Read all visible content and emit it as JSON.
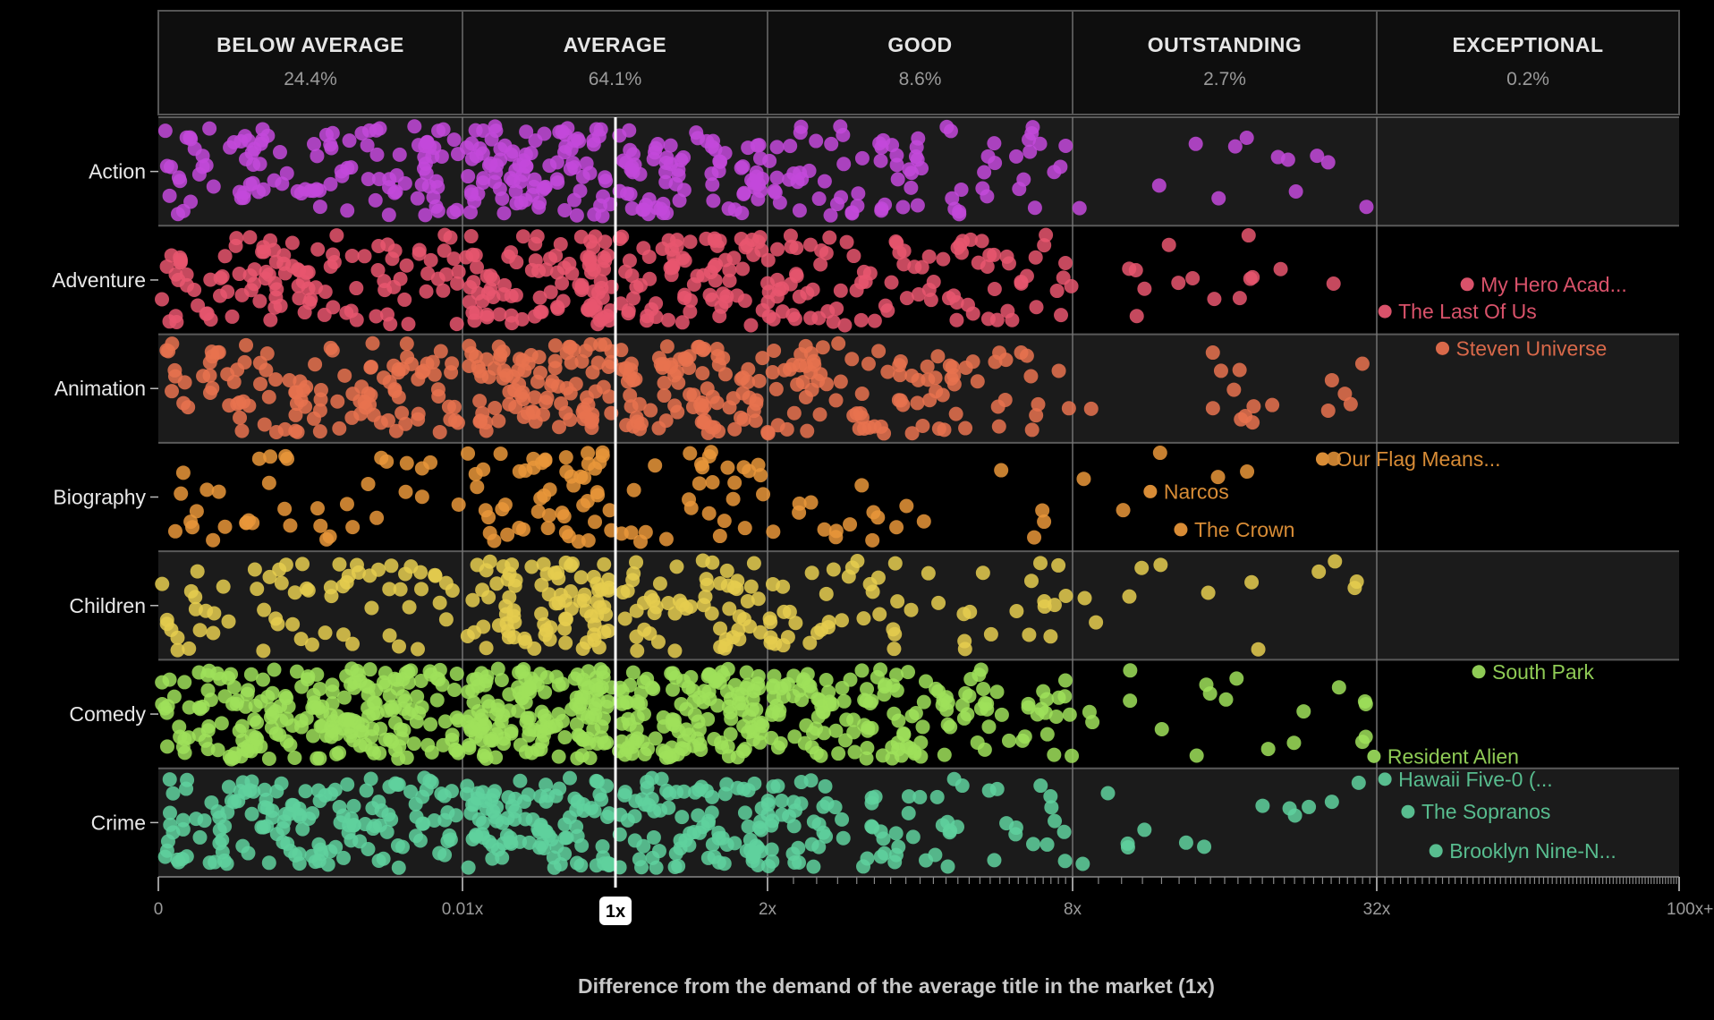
{
  "chart_data": {
    "type": "scatter",
    "subtype": "jitter-strip",
    "xlabel": "Difference from the demand of the average title in the market (1x)",
    "x_scale": "piecewise-log",
    "x_ticks": [
      {
        "value": 0,
        "label": "0"
      },
      {
        "value": 0.01,
        "label": "0.01x"
      },
      {
        "value": 1,
        "label": "1x",
        "highlighted": true
      },
      {
        "value": 2,
        "label": "2x"
      },
      {
        "value": 8,
        "label": "8x"
      },
      {
        "value": 32,
        "label": "32x"
      },
      {
        "value": 100,
        "label": "100x+"
      }
    ],
    "bands": [
      {
        "label": "BELOW AVERAGE",
        "percent": "24.4%",
        "from": 0,
        "to": 0.01
      },
      {
        "label": "AVERAGE",
        "percent": "64.1%",
        "from": 0.01,
        "to": 2
      },
      {
        "label": "GOOD",
        "percent": "8.6%",
        "from": 2,
        "to": 8
      },
      {
        "label": "OUTSTANDING",
        "percent": "2.7%",
        "from": 8,
        "to": 32
      },
      {
        "label": "EXCEPTIONAL",
        "percent": "0.2%",
        "from": 32,
        "to": 100
      }
    ],
    "categories": [
      "Action",
      "Adventure",
      "Animation",
      "Biography",
      "Children",
      "Comedy",
      "Crime"
    ],
    "colors": {
      "Action": "#c349db",
      "Adventure": "#e8566f",
      "Animation": "#e8724f",
      "Biography": "#e9973a",
      "Children": "#e5cd4f",
      "Comedy": "#9fe05b",
      "Crime": "#5fd19e"
    },
    "label_colors": {
      "Adventure": "#d9526a",
      "Animation": "#d9694a",
      "Biography": "#d88c36",
      "Comedy": "#8fcb55",
      "Crime": "#58bd8f"
    },
    "annotations": [
      {
        "category": "Adventure",
        "title": "My Hero Acad...",
        "x": 45,
        "y_frac": 0.54
      },
      {
        "category": "Adventure",
        "title": "The Last Of Us",
        "x": 33,
        "y_frac": 0.79
      },
      {
        "category": "Animation",
        "title": "Steven Universe",
        "x": 41,
        "y_frac": 0.13
      },
      {
        "category": "Biography",
        "title": "Our Flag Means...",
        "x": 25,
        "y_frac": 0.15
      },
      {
        "category": "Biography",
        "title": "Narcos",
        "x": 11.4,
        "y_frac": 0.45
      },
      {
        "category": "Biography",
        "title": "The Crown",
        "x": 13.1,
        "y_frac": 0.8
      },
      {
        "category": "Comedy",
        "title": "South Park",
        "x": 47,
        "y_frac": 0.11
      },
      {
        "category": "Comedy",
        "title": "Resident Alien",
        "x": 31.6,
        "y_frac": 0.89
      },
      {
        "category": "Crime",
        "title": "Hawaii Five-0 (...",
        "x": 33,
        "y_frac": 0.1
      },
      {
        "category": "Crime",
        "title": "The Sopranos",
        "x": 36,
        "y_frac": 0.4
      },
      {
        "category": "Crime",
        "title": "Brooklyn Nine-N...",
        "x": 40,
        "y_frac": 0.76
      }
    ],
    "grid": true
  }
}
